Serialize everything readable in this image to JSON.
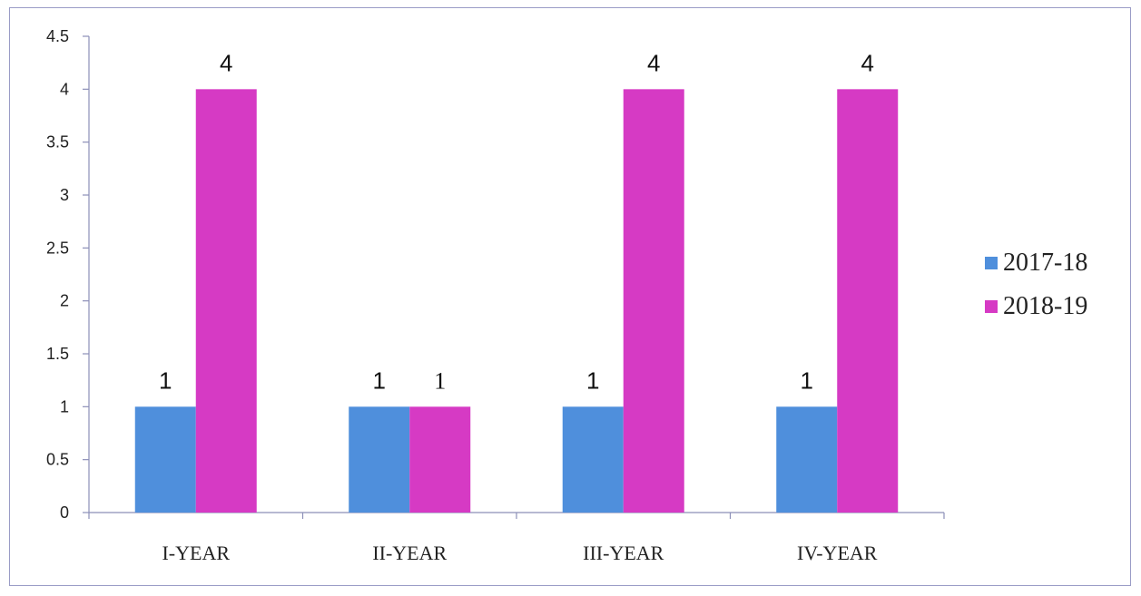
{
  "chart_data": {
    "type": "bar",
    "title": "",
    "xlabel": "",
    "ylabel": "",
    "categories": [
      "I-YEAR",
      "II-YEAR",
      "III-YEAR",
      "IV-YEAR"
    ],
    "series": [
      {
        "name": "2017-18",
        "color": "#4f8fdc",
        "values": [
          1,
          1,
          1,
          1
        ]
      },
      {
        "name": "2018-19",
        "color": "#d63ac4",
        "values": [
          4,
          1,
          4,
          4
        ]
      }
    ],
    "ylim": [
      0,
      4.5
    ],
    "yticks": [
      "0",
      "0.5",
      "1",
      "1.5",
      "2",
      "2.5",
      "3",
      "3.5",
      "4",
      "4.5"
    ],
    "grid": false,
    "legend_position": "right",
    "data_labels": true
  }
}
